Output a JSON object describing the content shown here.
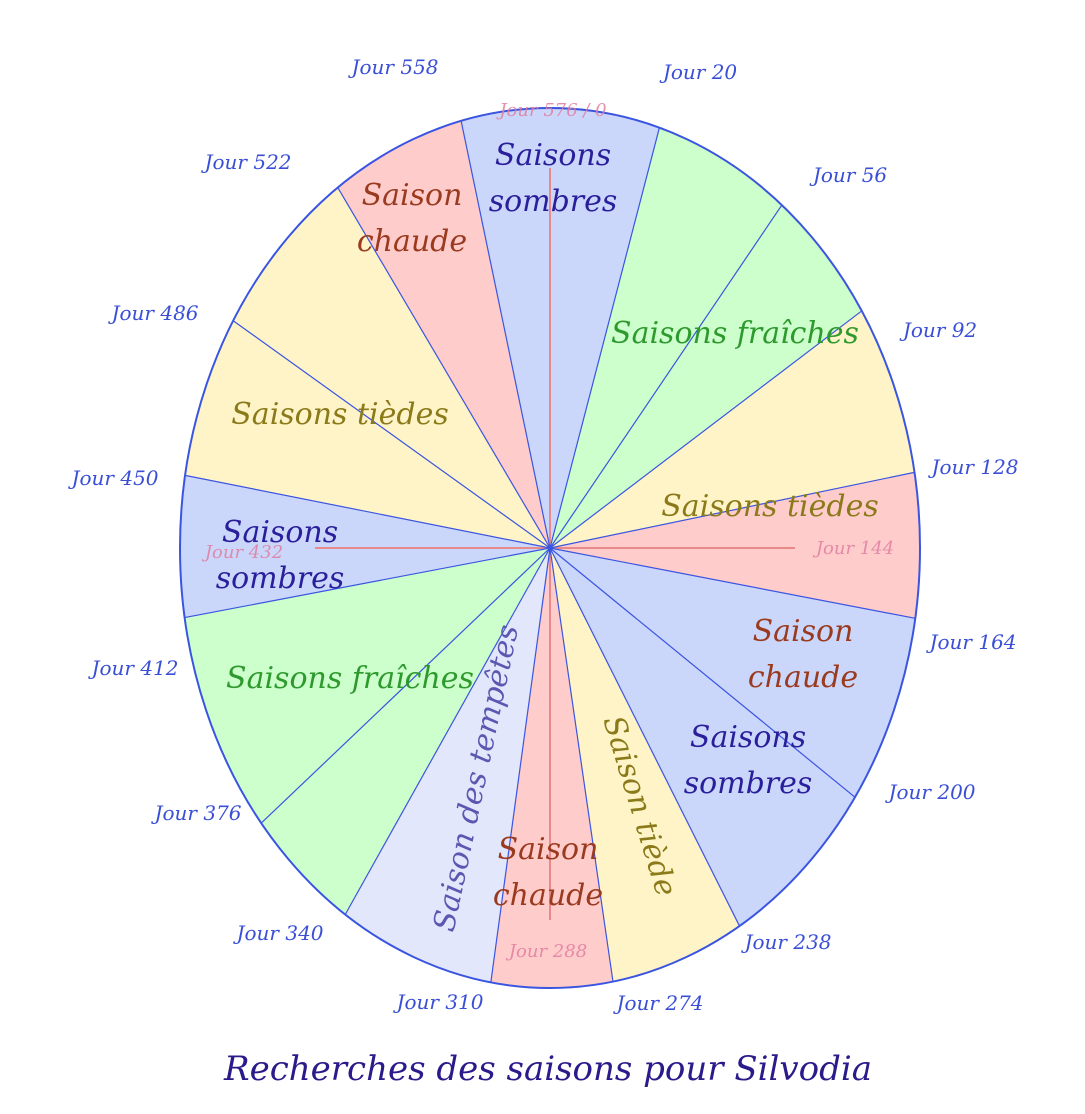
{
  "title": "Recherches des saisons pour Silvodia",
  "colors": {
    "sombres_fill": "#cbd6fb",
    "sombres_text": "#2a1f9a",
    "chaude_fill": "#ffcccc",
    "chaude_text": "#9a3b1f",
    "fraiches_fill": "#ccffcc",
    "fraiches_text": "#2e9a2e",
    "tiedes_fill": "#fff4c8",
    "tiedes_text": "#8a7a1a",
    "tempetes_fill": "#e3e7fb",
    "tempetes_text": "#5a58b0",
    "outline": "#3a55e0",
    "axis": "#e88a8a"
  },
  "day_labels": [
    "Jour 20",
    "Jour 56",
    "Jour 92",
    "Jour 128",
    "Jour 164",
    "Jour 200",
    "Jour 238",
    "Jour 274",
    "Jour 310",
    "Jour 340",
    "Jour 376",
    "Jour 412",
    "Jour 450",
    "Jour 486",
    "Jour 522",
    "Jour 558"
  ],
  "inner_day_labels": [
    "Jour 576 / 0",
    "Jour 144",
    "Jour 288",
    "Jour 432"
  ],
  "segments": [
    {
      "season": "Saisons fraîches",
      "color": "fraiches",
      "lines": [
        "Saisons fraîches"
      ]
    },
    {
      "season": "Saisons tièdes",
      "color": "tiedes",
      "lines": [
        "Saisons tièdes"
      ]
    },
    {
      "season": "Saison chaude",
      "color": "chaude",
      "lines": [
        "Saison",
        "chaude"
      ]
    },
    {
      "season": "Saisons sombres",
      "color": "sombres",
      "lines": [
        "Saisons",
        "sombres"
      ]
    },
    {
      "season": "Saison tiède",
      "color": "tiedes",
      "lines": [
        "Saison tiède"
      ]
    },
    {
      "season": "Saison chaude",
      "color": "chaude",
      "lines": [
        "Saison",
        "chaude"
      ]
    },
    {
      "season": "Saison des tempêtes",
      "color": "tempetes",
      "lines": [
        "Saison des tempêtes"
      ]
    },
    {
      "season": "Saisons fraîches",
      "color": "fraiches",
      "lines": [
        "Saisons fraîches"
      ]
    },
    {
      "season": "Saisons sombres",
      "color": "sombres",
      "lines": [
        "Saisons",
        "sombres"
      ]
    },
    {
      "season": "Saisons tièdes",
      "color": "tiedes",
      "lines": [
        "Saisons tièdes"
      ]
    },
    {
      "season": "Saison chaude",
      "color": "chaude",
      "lines": [
        "Saison",
        "chaude"
      ]
    },
    {
      "season": "Saisons sombres",
      "color": "sombres",
      "lines": [
        "Saisons",
        "sombres"
      ]
    }
  ]
}
